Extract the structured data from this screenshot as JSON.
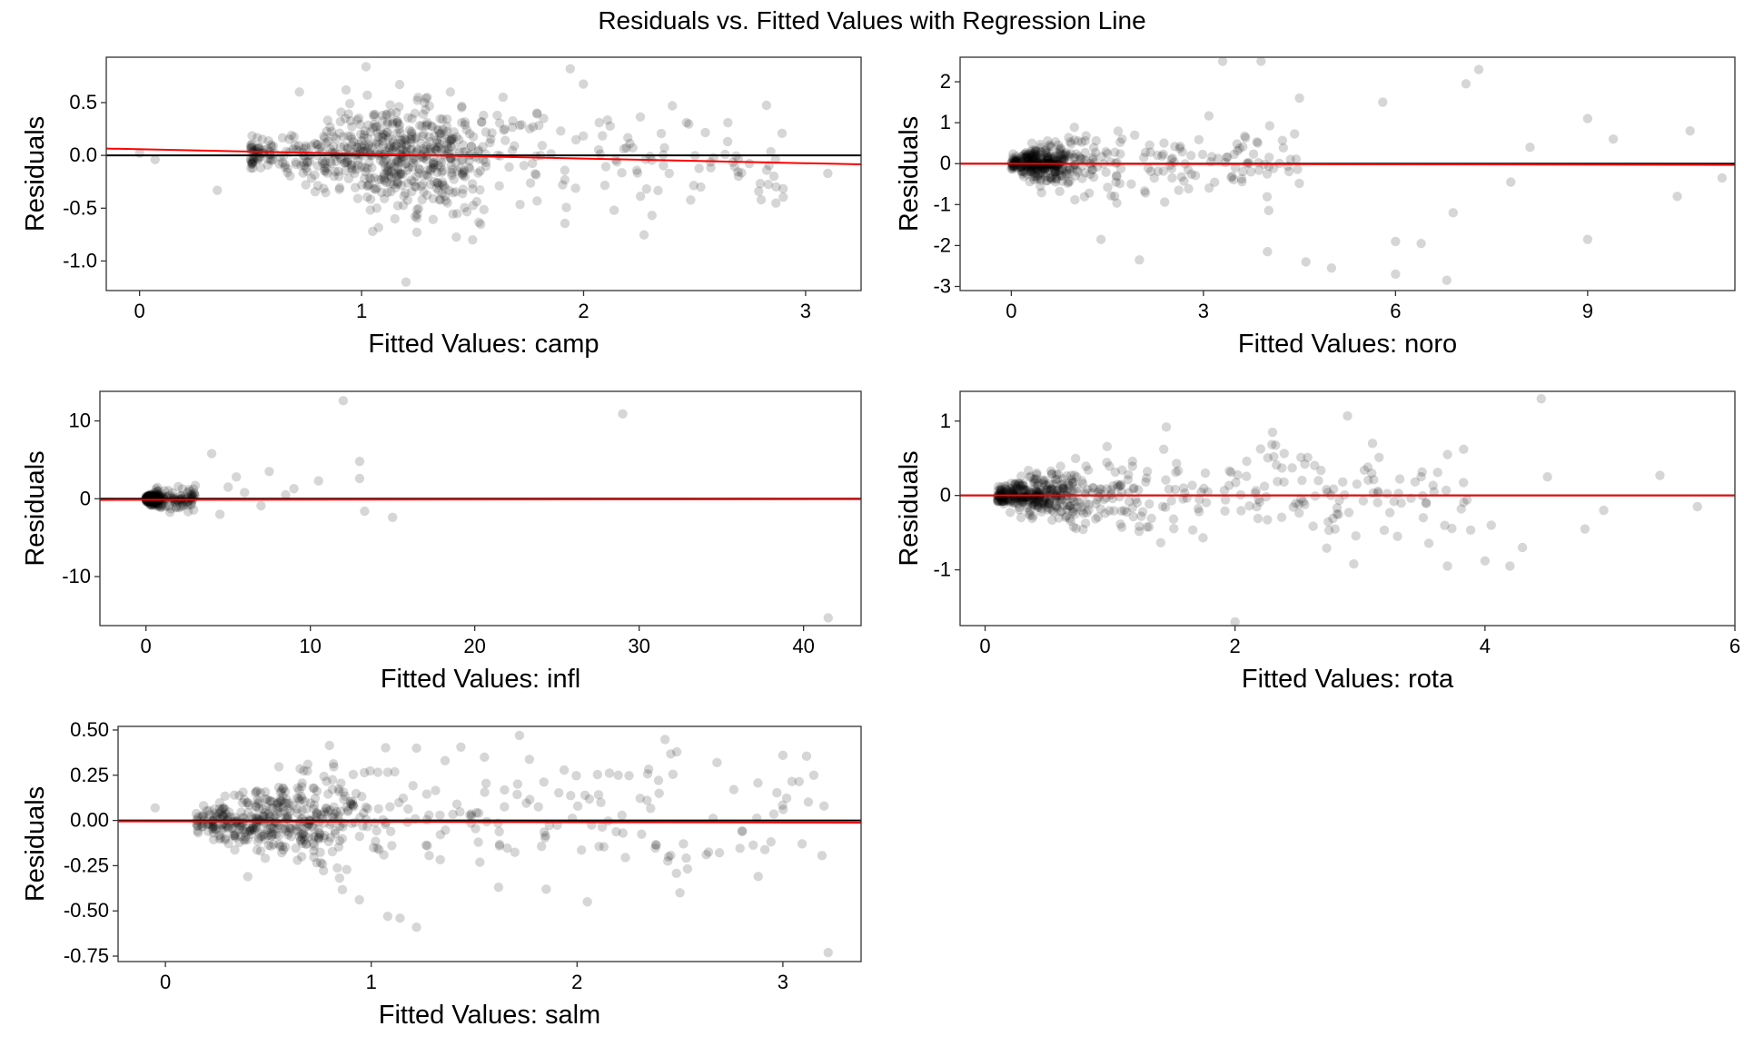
{
  "title": "Residuals vs. Fitted Values with Regression Line",
  "chart_data": [
    {
      "type": "scatter",
      "xlabel": "Fitted Values: camp",
      "ylabel": "Residuals",
      "xlim": [
        -0.15,
        3.25
      ],
      "ylim": [
        -1.28,
        0.93
      ],
      "xticks": [
        0,
        1,
        2,
        3
      ],
      "yticks": [
        0.5,
        0.0,
        -0.5,
        -1.0
      ],
      "ytick_labels": [
        "0.5",
        "0.0",
        "-0.5",
        "-1.0"
      ],
      "zero_line": 0,
      "zero_line_color": "#000000",
      "regression_color": "#ff0000",
      "regression": {
        "x": [
          -0.15,
          3.25
        ],
        "y": [
          0.065,
          -0.085
        ]
      },
      "cloud": {
        "n": 720,
        "xrange": [
          0.5,
          2.9
        ],
        "xcenter": 1.2,
        "ysd": 0.17,
        "ytrend": [
          0.03,
          -0.06
        ]
      },
      "points": [
        {
          "x": 0.0,
          "y": 0.02
        },
        {
          "x": 0.07,
          "y": -0.04
        },
        {
          "x": 0.35,
          "y": -0.33
        },
        {
          "x": 0.72,
          "y": 0.6
        },
        {
          "x": 0.93,
          "y": 0.62
        },
        {
          "x": 1.02,
          "y": 0.84
        },
        {
          "x": 1.94,
          "y": 0.82
        },
        {
          "x": 1.82,
          "y": 0.35
        },
        {
          "x": 1.2,
          "y": -1.2
        },
        {
          "x": 1.5,
          "y": -0.8
        },
        {
          "x": 1.05,
          "y": -0.72
        },
        {
          "x": 2.8,
          "y": -0.42
        },
        {
          "x": 3.1,
          "y": -0.17
        },
        {
          "x": 2.65,
          "y": 0.31
        },
        {
          "x": 2.4,
          "y": 0.47
        },
        {
          "x": 1.4,
          "y": 0.6
        },
        {
          "x": 1.15,
          "y": -0.6
        }
      ]
    },
    {
      "type": "scatter",
      "xlabel": "Fitted Values: noro",
      "ylabel": "Residuals",
      "xlim": [
        -0.8,
        11.3
      ],
      "ylim": [
        -3.1,
        2.6
      ],
      "xticks": [
        0,
        3,
        6,
        9
      ],
      "yticks": [
        2,
        1,
        0,
        -1,
        -2,
        -3
      ],
      "ytick_labels": [
        "2",
        "1",
        "0",
        "-1",
        "-2",
        "-3"
      ],
      "zero_line": 0,
      "zero_line_color": "#000000",
      "regression_color": "#ff0000",
      "regression": {
        "x": [
          -0.8,
          11.3
        ],
        "y": [
          0.0,
          -0.03
        ]
      },
      "cloud": {
        "n": 480,
        "xrange": [
          0.0,
          4.5
        ],
        "xcenter": 0.5,
        "ysd": 0.25,
        "ytrend": [
          0.0,
          0.0
        ]
      },
      "points": [
        {
          "x": 3.3,
          "y": 2.5
        },
        {
          "x": 3.9,
          "y": 2.5
        },
        {
          "x": 7.1,
          "y": 1.95
        },
        {
          "x": 7.3,
          "y": 2.3
        },
        {
          "x": 5.8,
          "y": 1.5
        },
        {
          "x": 4.5,
          "y": 1.6
        },
        {
          "x": 9.0,
          "y": 1.1
        },
        {
          "x": 10.6,
          "y": 0.8
        },
        {
          "x": 1.4,
          "y": -1.85
        },
        {
          "x": 2.0,
          "y": -2.35
        },
        {
          "x": 4.0,
          "y": -2.15
        },
        {
          "x": 4.6,
          "y": -2.4
        },
        {
          "x": 5.0,
          "y": -2.55
        },
        {
          "x": 6.0,
          "y": -1.9
        },
        {
          "x": 6.4,
          "y": -1.95
        },
        {
          "x": 6.0,
          "y": -2.7
        },
        {
          "x": 6.8,
          "y": -2.85
        },
        {
          "x": 9.0,
          "y": -1.85
        },
        {
          "x": 10.4,
          "y": -0.8
        },
        {
          "x": 7.8,
          "y": -0.45
        },
        {
          "x": 11.1,
          "y": -0.35
        },
        {
          "x": 9.4,
          "y": 0.6
        },
        {
          "x": 8.1,
          "y": 0.4
        },
        {
          "x": 6.9,
          "y": -1.2
        }
      ]
    },
    {
      "type": "scatter",
      "xlabel": "Fitted Values: infl",
      "ylabel": "Residuals",
      "xlim": [
        -2.8,
        43.5
      ],
      "ylim": [
        -16.3,
        13.8
      ],
      "xticks": [
        0,
        10,
        20,
        30,
        40
      ],
      "yticks": [
        10,
        0,
        -10
      ],
      "ytick_labels": [
        "10",
        "0",
        "-10"
      ],
      "zero_line": 0,
      "zero_line_color": "#000000",
      "regression_color": "#ff0000",
      "regression": {
        "x": [
          -2.8,
          43.5
        ],
        "y": [
          -0.15,
          -0.05
        ]
      },
      "cloud": {
        "n": 320,
        "xrange": [
          0.0,
          3.0
        ],
        "xcenter": 0.4,
        "ysd": 0.4,
        "ytrend": [
          0.0,
          0.0
        ]
      },
      "points": [
        {
          "x": 12.0,
          "y": 12.6
        },
        {
          "x": 29.0,
          "y": 10.9
        },
        {
          "x": 41.5,
          "y": -15.3
        },
        {
          "x": 4.0,
          "y": 5.8
        },
        {
          "x": 13.0,
          "y": 4.8
        },
        {
          "x": 13.0,
          "y": 2.6
        },
        {
          "x": 15.0,
          "y": -2.4
        },
        {
          "x": 13.3,
          "y": -1.6
        },
        {
          "x": 7.5,
          "y": 3.5
        },
        {
          "x": 5.5,
          "y": 2.8
        },
        {
          "x": 5.0,
          "y": 1.5
        },
        {
          "x": 10.5,
          "y": 2.3
        },
        {
          "x": 9.0,
          "y": 1.3
        },
        {
          "x": 4.5,
          "y": -2.0
        },
        {
          "x": 7.0,
          "y": -0.9
        },
        {
          "x": 8.5,
          "y": 0.5
        },
        {
          "x": 6.0,
          "y": 0.8
        },
        {
          "x": 3.0,
          "y": 1.7
        }
      ]
    },
    {
      "type": "scatter",
      "xlabel": "Fitted Values: rota",
      "ylabel": "Residuals",
      "xlim": [
        -0.2,
        6.0
      ],
      "ylim": [
        -1.75,
        1.4
      ],
      "xticks": [
        0,
        2,
        4,
        6
      ],
      "yticks": [
        1,
        0,
        -1
      ],
      "ytick_labels": [
        "1",
        "0",
        "-1"
      ],
      "zero_line": 0,
      "zero_line_color": "#000000",
      "regression_color": "#ff0000",
      "regression": {
        "x": [
          -0.2,
          6.0
        ],
        "y": [
          0.0,
          0.0
        ]
      },
      "cloud": {
        "n": 560,
        "xrange": [
          0.1,
          3.9
        ],
        "xcenter": 0.4,
        "ysd": 0.18,
        "ytrend": [
          0.0,
          0.0
        ]
      },
      "points": [
        {
          "x": 4.45,
          "y": 1.3
        },
        {
          "x": 2.9,
          "y": 1.07
        },
        {
          "x": 2.3,
          "y": 0.85
        },
        {
          "x": 1.45,
          "y": 0.92
        },
        {
          "x": 2.0,
          "y": -1.7
        },
        {
          "x": 4.2,
          "y": -0.95
        },
        {
          "x": 4.0,
          "y": -0.88
        },
        {
          "x": 3.7,
          "y": -0.95
        },
        {
          "x": 5.4,
          "y": 0.27
        },
        {
          "x": 4.5,
          "y": 0.25
        },
        {
          "x": 5.7,
          "y": -0.15
        },
        {
          "x": 4.8,
          "y": -0.45
        },
        {
          "x": 4.95,
          "y": -0.2
        },
        {
          "x": 4.3,
          "y": -0.7
        },
        {
          "x": 3.3,
          "y": -0.55
        },
        {
          "x": 2.95,
          "y": -0.92
        },
        {
          "x": 4.05,
          "y": -0.4
        },
        {
          "x": 3.1,
          "y": 0.7
        },
        {
          "x": 3.7,
          "y": 0.55
        }
      ]
    },
    {
      "type": "scatter",
      "xlabel": "Fitted Values: salm",
      "ylabel": "Residuals",
      "xlim": [
        -0.23,
        3.38
      ],
      "ylim": [
        -0.78,
        0.52
      ],
      "xticks": [
        0,
        1,
        2,
        3
      ],
      "yticks": [
        0.5,
        0.25,
        0.0,
        -0.25,
        -0.5,
        -0.75
      ],
      "ytick_labels": [
        "0.50",
        "0.25",
        "0.00",
        "-0.25",
        "-0.50",
        "-0.75"
      ],
      "zero_line": 0,
      "zero_line_color": "#000000",
      "regression_color": "#ff0000",
      "regression": {
        "x": [
          -0.23,
          3.38
        ],
        "y": [
          -0.005,
          -0.012
        ]
      },
      "cloud": {
        "n": 560,
        "xrange": [
          0.15,
          3.2
        ],
        "xcenter": 0.6,
        "ysd": 0.11,
        "ytrend": [
          0.0,
          0.0
        ]
      },
      "points": [
        {
          "x": -0.05,
          "y": 0.07
        },
        {
          "x": 1.72,
          "y": 0.47
        },
        {
          "x": 3.22,
          "y": -0.73
        },
        {
          "x": 1.08,
          "y": -0.53
        },
        {
          "x": 1.14,
          "y": -0.54
        },
        {
          "x": 1.22,
          "y": -0.59
        },
        {
          "x": 2.05,
          "y": -0.45
        },
        {
          "x": 1.22,
          "y": 0.4
        },
        {
          "x": 1.55,
          "y": 0.35
        },
        {
          "x": 2.68,
          "y": 0.32
        },
        {
          "x": 3.0,
          "y": 0.36
        },
        {
          "x": 2.5,
          "y": -0.4
        },
        {
          "x": 2.88,
          "y": -0.31
        },
        {
          "x": 2.2,
          "y": 0.25
        },
        {
          "x": 3.15,
          "y": 0.25
        },
        {
          "x": 1.85,
          "y": -0.38
        },
        {
          "x": 3.2,
          "y": 0.08
        }
      ]
    }
  ]
}
